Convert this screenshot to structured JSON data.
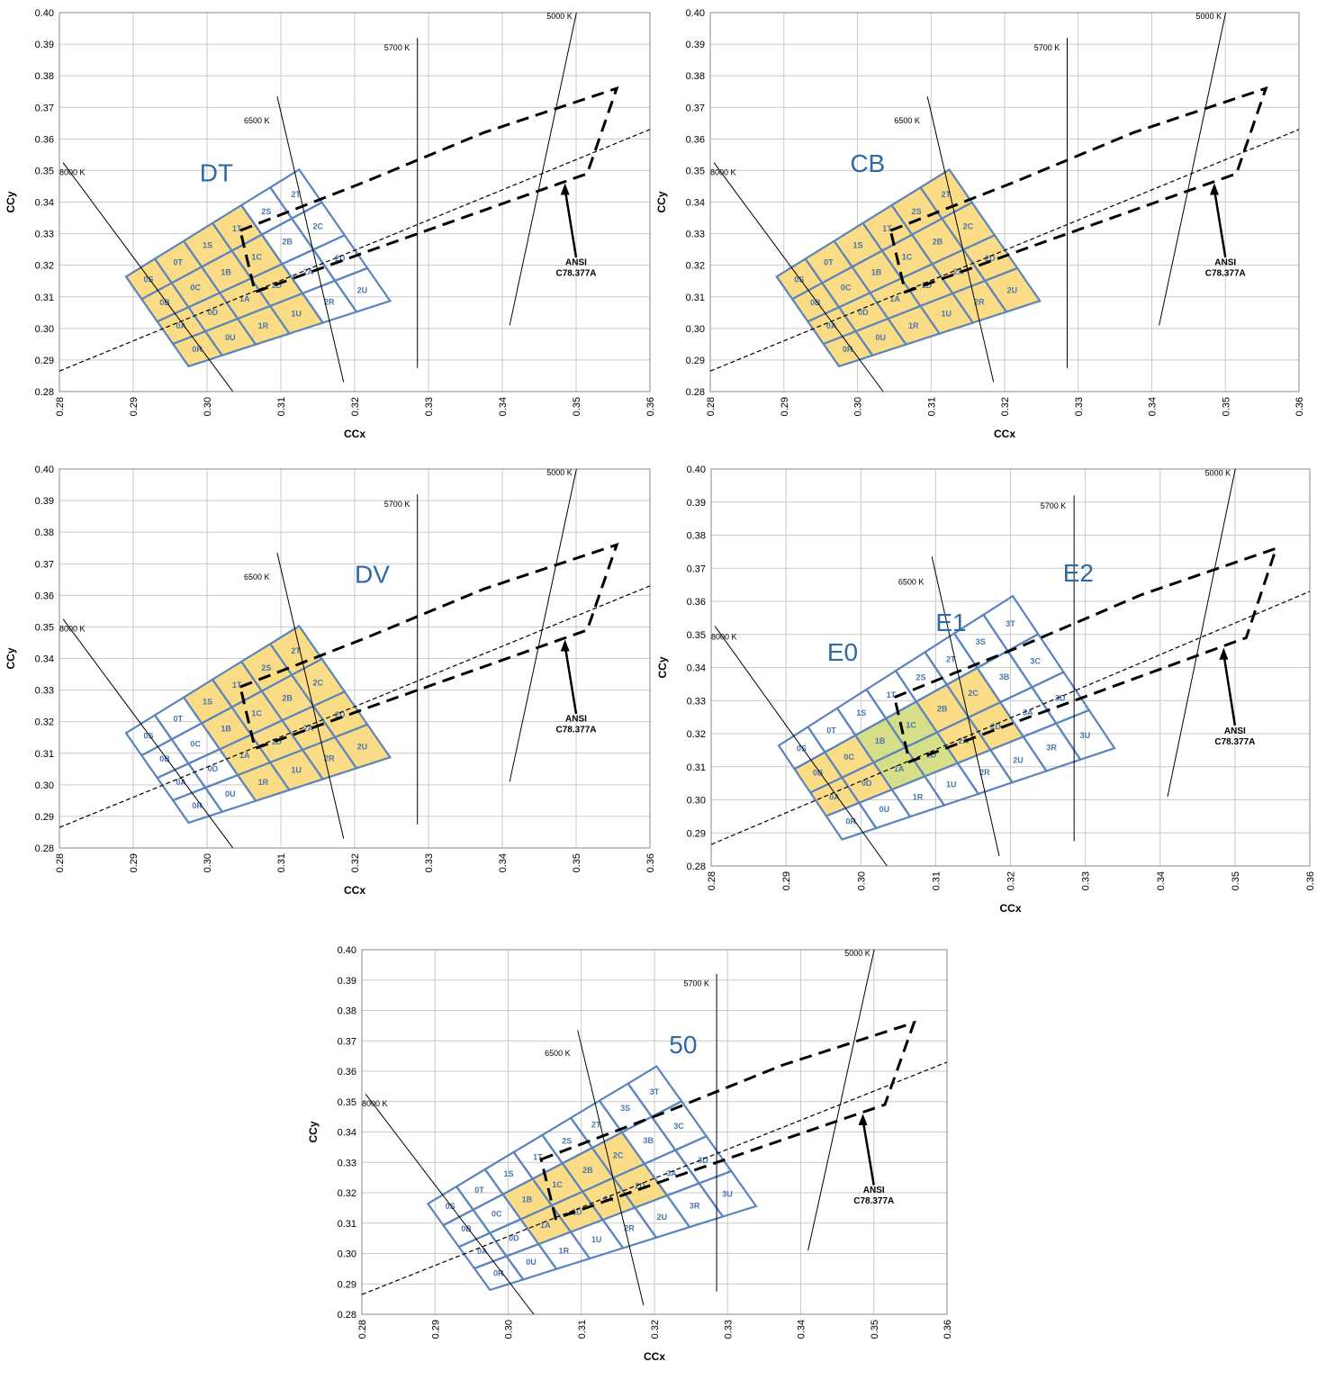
{
  "chart_data": [
    {
      "type": "scatter",
      "bin_label": "DT",
      "xlabel": "CCx",
      "ylabel": "CCy",
      "xlim": [
        0.28,
        0.36
      ],
      "ylim": [
        0.28,
        0.4
      ],
      "ymax_bins": 2,
      "highlight": [
        "0S",
        "0B",
        "0A",
        "0R",
        "0T",
        "0C",
        "0D",
        "0U",
        "1S",
        "1B",
        "1A",
        "1R",
        "1T",
        "1C",
        "1D",
        "1U"
      ],
      "highlight2": []
    },
    {
      "type": "scatter",
      "bin_label": "CB",
      "xlabel": "CCx",
      "ylabel": "CCy",
      "xlim": [
        0.28,
        0.36
      ],
      "ylim": [
        0.28,
        0.4
      ],
      "ymax_bins": 2,
      "highlight": [
        "0S",
        "0B",
        "0A",
        "0R",
        "0T",
        "0C",
        "0D",
        "0U",
        "1S",
        "1B",
        "1A",
        "1R",
        "1T",
        "1C",
        "1D",
        "1U",
        "2S",
        "2B",
        "2A",
        "2R",
        "2T",
        "2C",
        "2D",
        "2U"
      ],
      "highlight2": []
    },
    {
      "type": "scatter",
      "bin_label": "DV",
      "xlabel": "CCx",
      "ylabel": "CCy",
      "xlim": [
        0.28,
        0.36
      ],
      "ylim": [
        0.28,
        0.4
      ],
      "ymax_bins": 2,
      "highlight": [
        "1S",
        "1B",
        "1A",
        "1R",
        "1T",
        "1C",
        "1D",
        "1U",
        "2S",
        "2B",
        "2A",
        "2R",
        "2T",
        "2C",
        "2D",
        "2U"
      ],
      "highlight2": []
    },
    {
      "type": "scatter",
      "bin_label": "E2",
      "extra_labels": [
        "E0",
        "E1"
      ],
      "xlabel": "CCx",
      "ylabel": "CCy",
      "xlim": [
        0.28,
        0.36
      ],
      "ylim": [
        0.28,
        0.4
      ],
      "ymax_bins": 3,
      "highlight": [
        "0B",
        "0A",
        "0C",
        "0D",
        "2B",
        "2A",
        "2C",
        "2D"
      ],
      "highlight2": [
        "1B",
        "1A",
        "1C",
        "1D"
      ]
    },
    {
      "type": "scatter",
      "bin_label": "50",
      "xlabel": "CCx",
      "ylabel": "CCy",
      "xlim": [
        0.28,
        0.36
      ],
      "ylim": [
        0.28,
        0.4
      ],
      "ymax_bins": 3,
      "highlight": [
        "1B",
        "1A",
        "1C",
        "1D",
        "2B",
        "2A",
        "2C",
        "2D"
      ],
      "highlight2": []
    }
  ],
  "common": {
    "x_ticks": [
      "0.28",
      "0.29",
      "0.30",
      "0.31",
      "0.32",
      "0.33",
      "0.34",
      "0.35",
      "0.36"
    ],
    "y_ticks": [
      "0.28",
      "0.29",
      "0.30",
      "0.31",
      "0.32",
      "0.33",
      "0.34",
      "0.35",
      "0.36",
      "0.37",
      "0.38",
      "0.39",
      "0.40"
    ],
    "cct_labels": [
      "8000 K",
      "6500 K",
      "5700 K",
      "5000 K"
    ],
    "ansi_label_line1": "ANSI",
    "ansi_label_line2": "C78.377A",
    "grid": true,
    "colors": {
      "bin_outline": "#5b84bd",
      "bin_label": "#4a76b0",
      "fill_primary": "#fadc86",
      "fill_secondary": "#d6df87",
      "big_label": "#2e6aa3",
      "gridline": "#c9c9c9"
    }
  }
}
